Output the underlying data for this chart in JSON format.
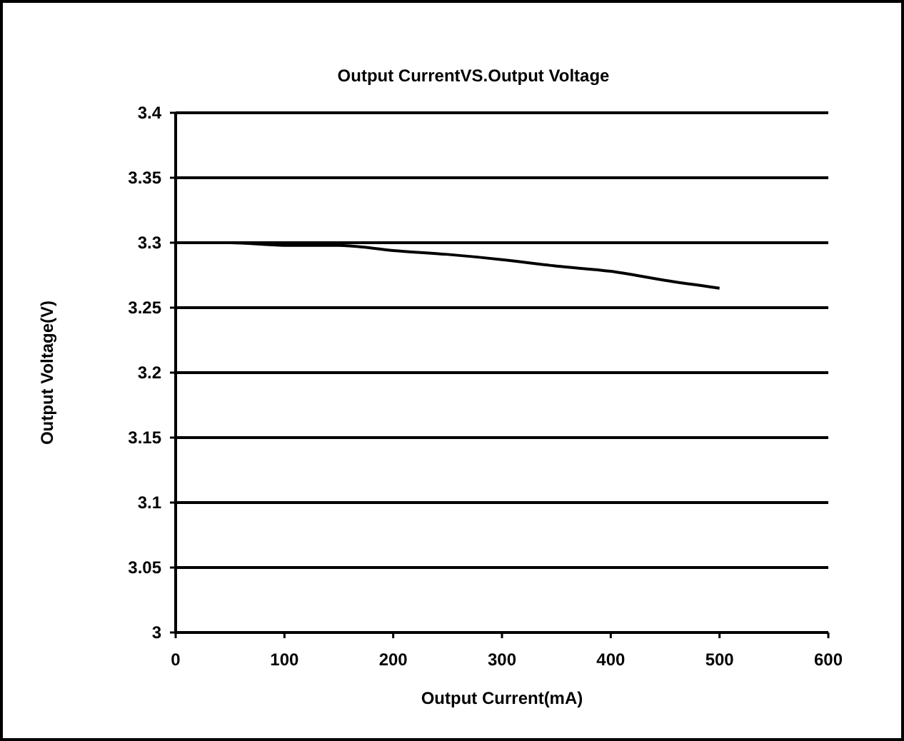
{
  "chart_data": {
    "type": "line",
    "title": "Output CurrentVS.Output Voltage",
    "xlabel": "Output Current(mA)",
    "ylabel": "Output Voltage(V)",
    "x": [
      0,
      50,
      100,
      150,
      200,
      250,
      300,
      350,
      400,
      450,
      500
    ],
    "series": [
      {
        "color": "#000000",
        "values": [
          3.3,
          3.3,
          3.298,
          3.298,
          3.294,
          3.291,
          3.287,
          3.282,
          3.278,
          3.271,
          3.265
        ]
      }
    ],
    "xlim": [
      0,
      600
    ],
    "xticks": [
      0,
      100,
      200,
      300,
      400,
      500,
      600
    ],
    "ylim": [
      3,
      3.4
    ],
    "yticks": [
      3,
      3.05,
      3.1,
      3.15,
      3.2,
      3.25,
      3.3,
      3.35,
      3.4
    ],
    "grid": "y",
    "marker": "none",
    "line_style": "solid"
  }
}
